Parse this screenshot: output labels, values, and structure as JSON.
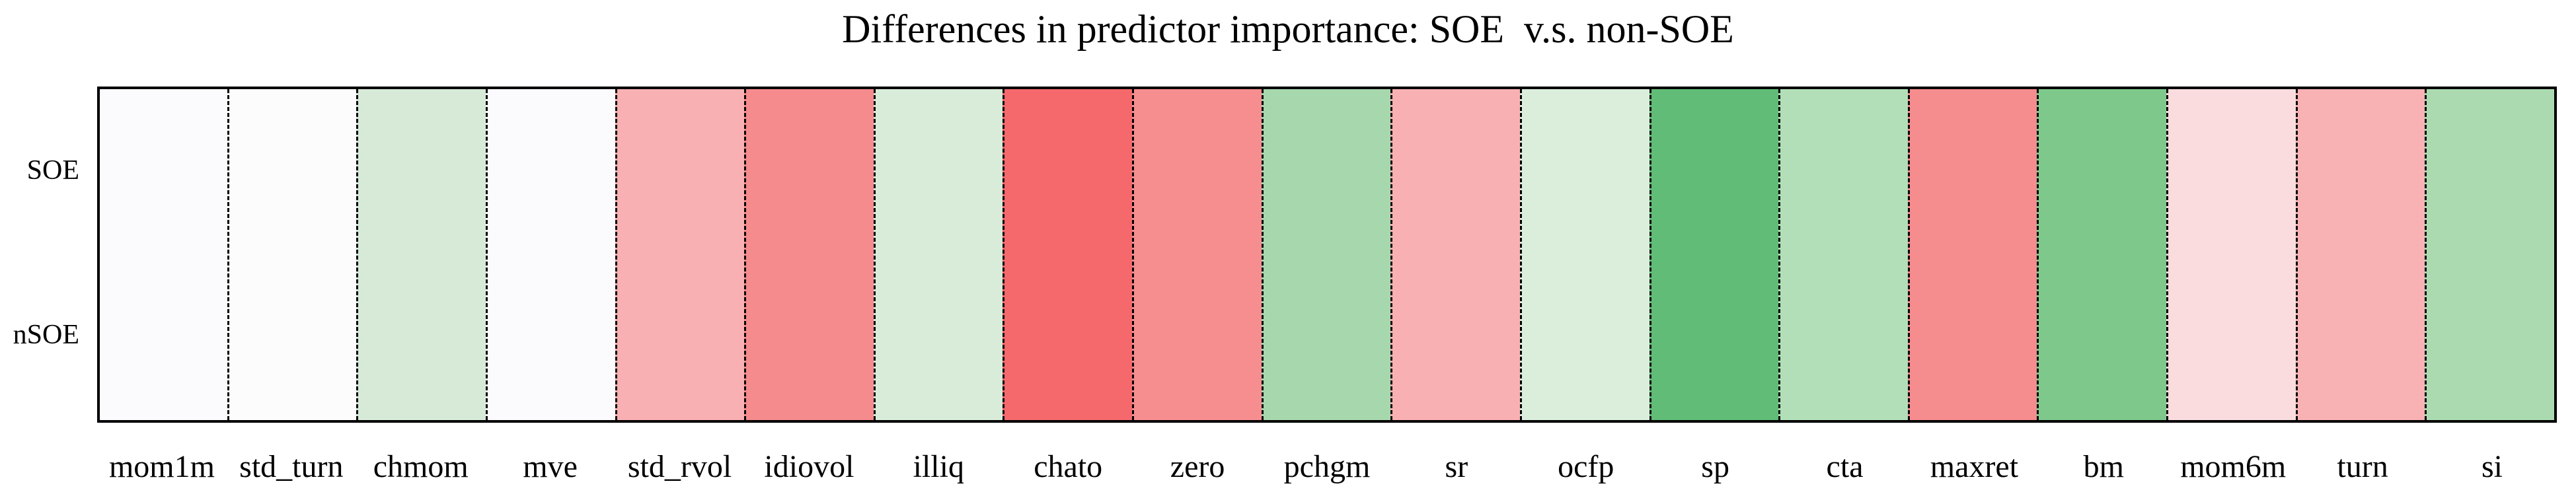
{
  "title": "Differences in predictor importance: SOE  v.s. non-SOE",
  "chart_data": {
    "type": "heatmap",
    "rows": [
      "SOE",
      "nSOE"
    ],
    "categories": [
      "mom1m",
      "std_turn",
      "chmom",
      "mve",
      "std_rvol",
      "idiovol",
      "illiq",
      "chato",
      "zero",
      "pchgm",
      "sr",
      "ocfp",
      "sp",
      "cta",
      "maxret",
      "bm",
      "mom6m",
      "turn",
      "si"
    ],
    "cell_colors": [
      "#fbfbfd",
      "#fcfcfd",
      "#d6ead7",
      "#fbfbfe",
      "#f9b0b2",
      "#f58b8d",
      "#d9ecda",
      "#f5696c",
      "#f68e90",
      "#a7d7ad",
      "#f9b0b2",
      "#dbeedc",
      "#60bc77",
      "#b2dfb7",
      "#f58c8e",
      "#7fc88c",
      "#fadcde",
      "#f9b2b4",
      "#abdab1"
    ],
    "rows_share_colors": true,
    "colormap": "red-white-green",
    "legend": "none",
    "colorbar": "none",
    "grid": "dashed vertical separators between columns",
    "xlabel": "",
    "ylabel": ""
  },
  "colors": {
    "plot_border": "#000000",
    "separator": "#000000",
    "background": "#ffffff",
    "text": "#000000"
  }
}
